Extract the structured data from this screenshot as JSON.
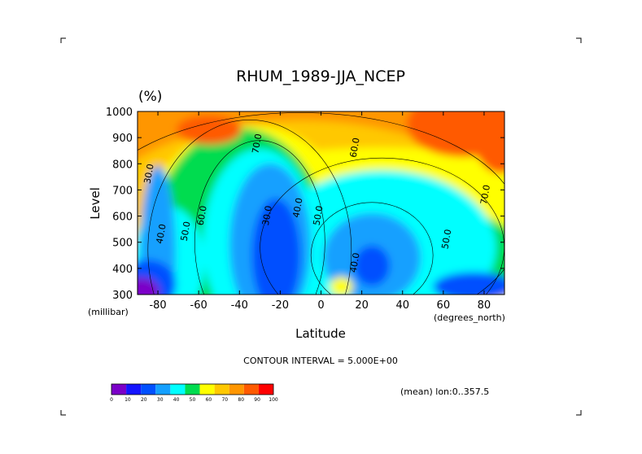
{
  "chart_data": {
    "type": "heatmap",
    "subtype": "filled-contour",
    "title": "RHUM_1989-JJA_NCEP",
    "units_label": "(%)",
    "xlabel": "Latitude",
    "ylabel": "Level",
    "x_unit": "(degrees_north)",
    "y_unit": "(millibar)",
    "xlim": [
      -90,
      90
    ],
    "ylim": [
      1000,
      300
    ],
    "y_scale": "pressure (decreasing upward)",
    "x_ticks": [
      "-80",
      "-60",
      "-40",
      "-20",
      "0",
      "20",
      "40",
      "60",
      "80"
    ],
    "y_ticks": [
      "300",
      "400",
      "500",
      "600",
      "700",
      "800",
      "900",
      "1000"
    ],
    "contour_interval_text": "CONTOUR INTERVAL = 5.000E+00",
    "mean_note": "(mean) lon:0..357.5",
    "colorbar": {
      "labels": [
        "0",
        "10",
        "20",
        "30",
        "40",
        "50",
        "60",
        "70",
        "80",
        "90",
        "100"
      ],
      "colors": [
        "#7b00c8",
        "#1414ff",
        "#0050ff",
        "#14a0ff",
        "#00ffff",
        "#00dc50",
        "#ffff00",
        "#ffc800",
        "#ff9600",
        "#ff5a00",
        "#ff0000"
      ]
    },
    "contour_labels": [
      {
        "text": "30.0",
        "lat": -83,
        "lev": 760
      },
      {
        "text": "40.0",
        "lat": -77,
        "lev": 530
      },
      {
        "text": "50.0",
        "lat": -65,
        "lev": 540
      },
      {
        "text": "60.0",
        "lat": -57,
        "lev": 600
      },
      {
        "text": "70.0",
        "lat": -30,
        "lev": 875
      },
      {
        "text": "30.0",
        "lat": -25,
        "lev": 600
      },
      {
        "text": "40.0",
        "lat": -10,
        "lev": 630
      },
      {
        "text": "50.0",
        "lat": 0,
        "lev": 600
      },
      {
        "text": "40.0",
        "lat": 18,
        "lev": 420
      },
      {
        "text": "60.0",
        "lat": 18,
        "lev": 860
      },
      {
        "text": "50.0",
        "lat": 63,
        "lev": 510
      },
      {
        "text": "70.0",
        "lat": 82,
        "lev": 680
      }
    ]
  }
}
